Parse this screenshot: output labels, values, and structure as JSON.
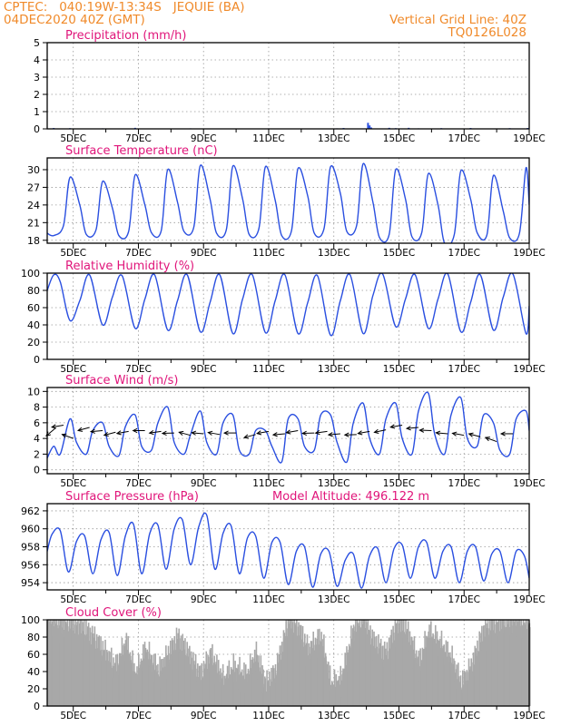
{
  "header": {
    "line1_left": "CPTEC:   040:19W-13:34S   JEQUIE (BA)",
    "line2_left": "04DEC2020 40Z (GMT)",
    "line1_right": "Vertical Grid Line: 40Z",
    "line2_right": "TQ0126L028"
  },
  "colors": {
    "header": "#f08a2a",
    "title": "#e0157a",
    "line": "#2a4fe0",
    "cloud": "#a8a8a8",
    "grid": "#999999"
  },
  "chart_data": [
    {
      "type": "bar",
      "title": "Precipitation  (mm/h)",
      "ylim": [
        0,
        5
      ],
      "yticks": [
        0,
        1,
        2,
        3,
        4,
        5
      ],
      "xlim": [
        4.2,
        19.0
      ],
      "xtick_labels": [
        "5DEC",
        "7DEC",
        "9DEC",
        "11DEC",
        "13DEC",
        "15DEC",
        "17DEC",
        "19DEC"
      ],
      "xticks": [
        5,
        7,
        9,
        11,
        13,
        15,
        17,
        19
      ],
      "series": [
        {
          "values": [
            [
              4.4,
              0.05
            ],
            [
              4.9,
              0.04
            ],
            [
              5.9,
              0.03
            ],
            [
              6.9,
              0.06
            ],
            [
              7.7,
              0.02
            ],
            [
              8.6,
              0.03
            ],
            [
              9.9,
              0.02
            ],
            [
              11.0,
              0.03
            ],
            [
              12.5,
              0.02
            ],
            [
              13.1,
              0.03
            ],
            [
              13.3,
              0.05
            ],
            [
              14.05,
              0.35
            ],
            [
              14.1,
              0.2
            ],
            [
              14.15,
              0.08
            ],
            [
              14.7,
              0.06
            ],
            [
              14.9,
              0.04
            ],
            [
              15.3,
              0.06
            ],
            [
              15.6,
              0.03
            ],
            [
              16.3,
              0.04
            ],
            [
              17.2,
              0.05
            ],
            [
              18.4,
              0.04
            ],
            [
              18.95,
              0.05
            ]
          ]
        }
      ]
    },
    {
      "type": "line",
      "title": "Surface Temperature  (nC)",
      "ylim": [
        17.5,
        32.0
      ],
      "yticks": [
        18,
        21,
        24,
        27,
        30
      ],
      "xlim": [
        4.2,
        19.0
      ],
      "xtick_labels": [
        "5DEC",
        "7DEC",
        "9DEC",
        "11DEC",
        "13DEC",
        "15DEC",
        "17DEC",
        "19DEC"
      ],
      "xticks": [
        5,
        7,
        9,
        11,
        13,
        15,
        17,
        19
      ],
      "series": [
        {
          "x": [
            4.2,
            4.4,
            4.7,
            4.9,
            5.2,
            5.4,
            5.7,
            5.9,
            6.2,
            6.4,
            6.7,
            6.9,
            7.2,
            7.4,
            7.7,
            7.9,
            8.2,
            8.4,
            8.7,
            8.9,
            9.2,
            9.4,
            9.7,
            9.9,
            10.2,
            10.4,
            10.7,
            10.9,
            11.2,
            11.4,
            11.7,
            11.9,
            12.2,
            12.4,
            12.7,
            12.9,
            13.2,
            13.4,
            13.7,
            13.9,
            14.2,
            14.4,
            14.7,
            14.9,
            15.2,
            15.4,
            15.7,
            15.9,
            16.2,
            16.4,
            16.7,
            16.9,
            17.2,
            17.4,
            17.7,
            17.9,
            18.2,
            18.4,
            18.7,
            18.9,
            19.0
          ],
          "values": [
            19.2,
            18.8,
            20.5,
            28.7,
            24.0,
            19.0,
            19.8,
            28.0,
            23.5,
            18.8,
            19.5,
            29.1,
            24.0,
            19.3,
            19.6,
            30.0,
            24.5,
            19.5,
            20.2,
            30.7,
            25.0,
            19.2,
            19.8,
            30.6,
            25.0,
            19.0,
            20.0,
            30.5,
            24.8,
            18.8,
            19.6,
            30.2,
            25.5,
            19.2,
            20.0,
            30.5,
            26.0,
            19.5,
            20.5,
            31.0,
            24.5,
            18.5,
            19.0,
            30.0,
            25.0,
            18.6,
            19.3,
            29.3,
            24.0,
            17.5,
            19.0,
            29.8,
            25.0,
            19.3,
            18.9,
            29.0,
            23.0,
            18.4,
            19.2,
            30.3,
            24.0
          ]
        }
      ]
    },
    {
      "type": "line",
      "title": "Relative Humidity  (%)",
      "ylim": [
        0,
        100
      ],
      "yticks": [
        0,
        20,
        40,
        60,
        80,
        100
      ],
      "xlim": [
        4.2,
        19.0
      ],
      "xtick_labels": [
        "5DEC",
        "7DEC",
        "9DEC",
        "11DEC",
        "13DEC",
        "15DEC",
        "17DEC",
        "19DEC"
      ],
      "xticks": [
        5,
        7,
        9,
        11,
        13,
        15,
        17,
        19
      ],
      "series": [
        {
          "x": [
            4.2,
            4.4,
            4.6,
            4.9,
            5.2,
            5.5,
            5.9,
            6.2,
            6.5,
            6.9,
            7.2,
            7.5,
            7.9,
            8.2,
            8.5,
            8.9,
            9.2,
            9.5,
            9.9,
            10.2,
            10.5,
            10.9,
            11.2,
            11.5,
            11.9,
            12.2,
            12.5,
            12.9,
            13.2,
            13.5,
            13.9,
            14.2,
            14.5,
            14.9,
            15.2,
            15.5,
            15.9,
            16.2,
            16.5,
            16.9,
            17.2,
            17.5,
            17.9,
            18.2,
            18.5,
            18.9,
            19.0
          ],
          "values": [
            80,
            98,
            90,
            45,
            68,
            98,
            40,
            72,
            97,
            36,
            70,
            98,
            34,
            68,
            98,
            32,
            66,
            98,
            30,
            70,
            98,
            31,
            68,
            98,
            30,
            66,
            97,
            28,
            68,
            98,
            30,
            74,
            99,
            38,
            70,
            98,
            36,
            70,
            99,
            32,
            66,
            98,
            34,
            72,
            99,
            30,
            62
          ]
        }
      ]
    },
    {
      "type": "line",
      "title": "Surface Wind  (m/s)",
      "ylim": [
        -0.5,
        10.5
      ],
      "yticks": [
        0,
        2,
        4,
        6,
        8,
        10
      ],
      "xlim": [
        4.2,
        19.0
      ],
      "xtick_labels": [
        "5DEC",
        "7DEC",
        "9DEC",
        "11DEC",
        "13DEC",
        "15DEC",
        "17DEC",
        "19DEC"
      ],
      "xticks": [
        5,
        7,
        9,
        11,
        13,
        15,
        17,
        19
      ],
      "series": [
        {
          "x": [
            4.2,
            4.4,
            4.6,
            4.9,
            5.1,
            5.4,
            5.6,
            5.9,
            6.1,
            6.4,
            6.6,
            6.9,
            7.1,
            7.4,
            7.6,
            7.9,
            8.1,
            8.4,
            8.6,
            8.9,
            9.1,
            9.4,
            9.6,
            9.9,
            10.1,
            10.4,
            10.6,
            10.9,
            11.1,
            11.4,
            11.6,
            11.9,
            12.1,
            12.4,
            12.6,
            12.9,
            13.1,
            13.4,
            13.6,
            13.9,
            14.1,
            14.4,
            14.6,
            14.9,
            15.1,
            15.4,
            15.6,
            15.9,
            16.1,
            16.4,
            16.6,
            16.9,
            17.1,
            17.4,
            17.6,
            17.9,
            18.1,
            18.4,
            18.6,
            18.9,
            19.0
          ],
          "values": [
            1.5,
            3.0,
            2.0,
            6.5,
            3.5,
            2.0,
            5.0,
            6.0,
            3.0,
            1.8,
            5.5,
            7.0,
            3.0,
            2.5,
            6.0,
            8.0,
            3.5,
            2.0,
            4.5,
            7.5,
            3.5,
            2.0,
            6.0,
            7.0,
            2.5,
            2.0,
            5.0,
            5.0,
            3.0,
            1.0,
            6.5,
            6.5,
            3.0,
            2.5,
            7.0,
            7.0,
            3.5,
            1.0,
            6.0,
            8.5,
            4.0,
            2.0,
            6.5,
            8.5,
            4.0,
            2.0,
            7.5,
            9.8,
            4.5,
            2.0,
            7.0,
            9.2,
            4.0,
            3.0,
            7.0,
            6.0,
            2.5,
            2.0,
            6.5,
            7.5,
            5.0
          ]
        }
      ],
      "wind_vectors": [
        [
          4.45,
          5.3,
          -140
        ],
        [
          4.7,
          5.7,
          -170
        ],
        [
          5.0,
          4.0,
          -200
        ],
        [
          5.5,
          5.4,
          -165
        ],
        [
          5.9,
          5.0,
          -175
        ],
        [
          6.3,
          4.8,
          -165
        ],
        [
          6.7,
          4.9,
          -170
        ],
        [
          7.2,
          5.0,
          -180
        ],
        [
          7.7,
          4.9,
          -172
        ],
        [
          8.1,
          4.7,
          -178
        ],
        [
          8.6,
          4.4,
          -195
        ],
        [
          9.0,
          4.6,
          -185
        ],
        [
          9.5,
          4.5,
          -190
        ],
        [
          10.0,
          4.7,
          -180
        ],
        [
          10.6,
          4.5,
          -165
        ],
        [
          11.0,
          4.9,
          -170
        ],
        [
          11.5,
          4.6,
          -175
        ],
        [
          11.9,
          5.0,
          -170
        ],
        [
          12.4,
          4.7,
          -178
        ],
        [
          12.8,
          4.9,
          -172
        ],
        [
          13.2,
          4.6,
          -175
        ],
        [
          13.7,
          4.5,
          -178
        ],
        [
          14.1,
          4.9,
          -170
        ],
        [
          14.6,
          5.1,
          -168
        ],
        [
          15.1,
          5.7,
          -170
        ],
        [
          15.6,
          5.4,
          -175
        ],
        [
          16.0,
          5.0,
          -182
        ],
        [
          16.5,
          4.6,
          -185
        ],
        [
          17.0,
          4.4,
          -190
        ],
        [
          17.5,
          4.2,
          -195
        ],
        [
          18.0,
          3.6,
          -200
        ],
        [
          18.5,
          4.6,
          -180
        ]
      ]
    },
    {
      "type": "line",
      "title": "Surface Pressure  (hPa)",
      "annotation": "Model Altitude: 496.122  m",
      "ylim": [
        953.2,
        962.8
      ],
      "yticks": [
        954,
        956,
        958,
        960,
        962
      ],
      "xlim": [
        4.2,
        19.0
      ],
      "xtick_labels": [
        "5DEC",
        "7DEC",
        "9DEC",
        "11DEC",
        "13DEC",
        "15DEC",
        "17DEC",
        "19DEC"
      ],
      "xticks": [
        5,
        7,
        9,
        11,
        13,
        15,
        17,
        19
      ],
      "series": [
        {
          "x": [
            4.2,
            4.35,
            4.6,
            4.85,
            5.1,
            5.35,
            5.6,
            5.85,
            6.1,
            6.35,
            6.6,
            6.85,
            7.1,
            7.35,
            7.6,
            7.85,
            8.1,
            8.35,
            8.6,
            8.85,
            9.1,
            9.35,
            9.6,
            9.85,
            10.1,
            10.35,
            10.6,
            10.85,
            11.1,
            11.35,
            11.6,
            11.85,
            12.1,
            12.35,
            12.6,
            12.85,
            13.1,
            13.35,
            13.6,
            13.85,
            14.1,
            14.35,
            14.6,
            14.85,
            15.1,
            15.35,
            15.6,
            15.85,
            16.1,
            16.35,
            16.6,
            16.85,
            17.1,
            17.35,
            17.6,
            17.85,
            18.1,
            18.35,
            18.6,
            18.85,
            19.0
          ],
          "values": [
            957.5,
            959.4,
            959.8,
            955.2,
            958.6,
            959.2,
            955.0,
            958.8,
            959.6,
            954.8,
            959.2,
            960.5,
            955.0,
            959.5,
            960.4,
            955.5,
            960.0,
            961.0,
            956.0,
            960.2,
            961.5,
            955.5,
            959.5,
            960.3,
            955.0,
            959.0,
            959.2,
            954.5,
            958.5,
            958.5,
            953.8,
            957.5,
            958.0,
            953.5,
            957.2,
            957.5,
            953.6,
            956.5,
            957.2,
            953.4,
            957.0,
            957.8,
            954.0,
            957.8,
            958.2,
            954.5,
            958.0,
            958.5,
            954.5,
            957.5,
            958.0,
            954.0,
            957.5,
            958.0,
            954.2,
            957.2,
            957.5,
            954.0,
            957.5,
            957.0,
            954.5
          ]
        }
      ]
    },
    {
      "type": "bar",
      "title": "Cloud Cover  (%)",
      "ylim": [
        0,
        100
      ],
      "yticks": [
        0,
        20,
        40,
        60,
        80,
        100
      ],
      "xlim": [
        4.2,
        19.0
      ],
      "xtick_labels": [
        "5DEC",
        "7DEC",
        "9DEC",
        "11DEC",
        "13DEC",
        "15DEC",
        "17DEC",
        "19DEC"
      ],
      "xticks": [
        5,
        7,
        9,
        11,
        13,
        15,
        17,
        19
      ],
      "series": [
        {
          "profile_x": [
            4.2,
            4.5,
            4.9,
            5.2,
            5.6,
            5.9,
            6.3,
            6.6,
            6.9,
            7.2,
            7.6,
            7.9,
            8.2,
            8.6,
            8.9,
            9.2,
            9.6,
            9.9,
            10.3,
            10.6,
            10.9,
            11.2,
            11.6,
            11.9,
            12.2,
            12.6,
            12.9,
            13.2,
            13.6,
            13.9,
            14.2,
            14.6,
            14.9,
            15.2,
            15.6,
            15.9,
            16.2,
            16.6,
            16.9,
            17.2,
            17.6,
            17.9,
            18.2,
            18.6,
            19.0
          ],
          "profile_values": [
            95,
            92,
            90,
            88,
            75,
            60,
            40,
            70,
            30,
            60,
            35,
            55,
            75,
            50,
            30,
            55,
            25,
            40,
            30,
            55,
            20,
            35,
            95,
            85,
            60,
            75,
            20,
            25,
            85,
            95,
            70,
            55,
            90,
            85,
            45,
            80,
            70,
            50,
            20,
            40,
            85,
            90,
            92,
            95,
            88
          ]
        }
      ]
    }
  ]
}
